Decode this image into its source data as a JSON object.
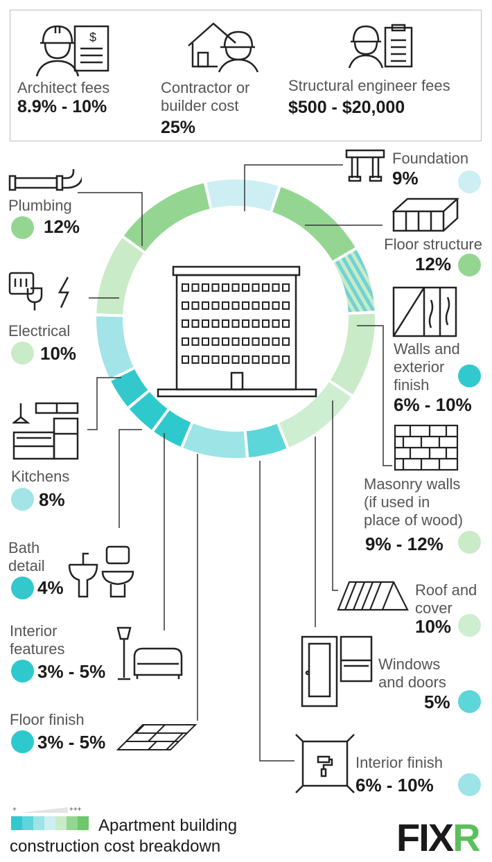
{
  "fees": [
    {
      "label_lines": [
        "Architect fees"
      ],
      "value": "8.9% - 10%"
    },
    {
      "label_lines": [
        "Contractor or",
        "builder cost"
      ],
      "value": "25%"
    },
    {
      "label_lines": [
        "Structural engineer fees"
      ],
      "value": "$500 - $20,000"
    }
  ],
  "chart_data": {
    "type": "pie",
    "style": "donut",
    "slices": [
      {
        "label_lines": [
          "Foundation"
        ],
        "value_text": "9%",
        "value": 9,
        "color": "#cdeff3"
      },
      {
        "label_lines": [
          "Floor structure"
        ],
        "value_text": "12%",
        "value": 12,
        "color": "#94d691"
      },
      {
        "label_lines": [
          "Walls and",
          "exterior",
          "finish"
        ],
        "value_text": "6% - 10%",
        "value": 8,
        "color": "#31c8ce"
      },
      {
        "label_lines": [
          "Masonry walls",
          "(if used in",
          "place of wood)"
        ],
        "value_text": "9% - 12%",
        "value": 10.5,
        "color": "#c9ebc7"
      },
      {
        "label_lines": [
          "Roof and",
          "cover"
        ],
        "value_text": "10%",
        "value": 10,
        "color": "#cdeed0"
      },
      {
        "label_lines": [
          "Windows",
          "and doors"
        ],
        "value_text": "5%",
        "value": 5,
        "color": "#5dd6d9"
      },
      {
        "label_lines": [
          "Interior finish"
        ],
        "value_text": "6% - 10%",
        "value": 8,
        "color": "#9ce4e6"
      },
      {
        "label_lines": [
          "Floor finish"
        ],
        "value_text": "3% - 5%",
        "value": 4,
        "color": "#2ec9cc"
      },
      {
        "label_lines": [
          "Interior",
          "features"
        ],
        "value_text": "3% - 5%",
        "value": 4,
        "color": "#2ec9cc"
      },
      {
        "label_lines": [
          "Bath",
          "detail"
        ],
        "value_text": "4%",
        "value": 4,
        "color": "#33c9cc"
      },
      {
        "label_lines": [
          "Kitchens"
        ],
        "value_text": "8%",
        "value": 8,
        "color": "#a2e4e7"
      },
      {
        "label_lines": [
          "Electrical"
        ],
        "value_text": "10%",
        "value": 10,
        "color": "#c9ebc7"
      },
      {
        "label_lines": [
          "Plumbing"
        ],
        "value_text": "12%",
        "value": 12,
        "color": "#94d691"
      }
    ]
  },
  "legend": {
    "low": "+",
    "high": "+++",
    "colors": [
      "#31c8ce",
      "#5dd6d9",
      "#9ce4e6",
      "#cdeff3",
      "#c9ebc7",
      "#94d691",
      "#6ec76c"
    ]
  },
  "footer": {
    "title_lines": [
      "Apartment building",
      "construction cost breakdown"
    ]
  },
  "logo": {
    "text": "FIXR",
    "colors": {
      "main": "#1a1a1a",
      "accent": "#5bbf5b"
    }
  }
}
